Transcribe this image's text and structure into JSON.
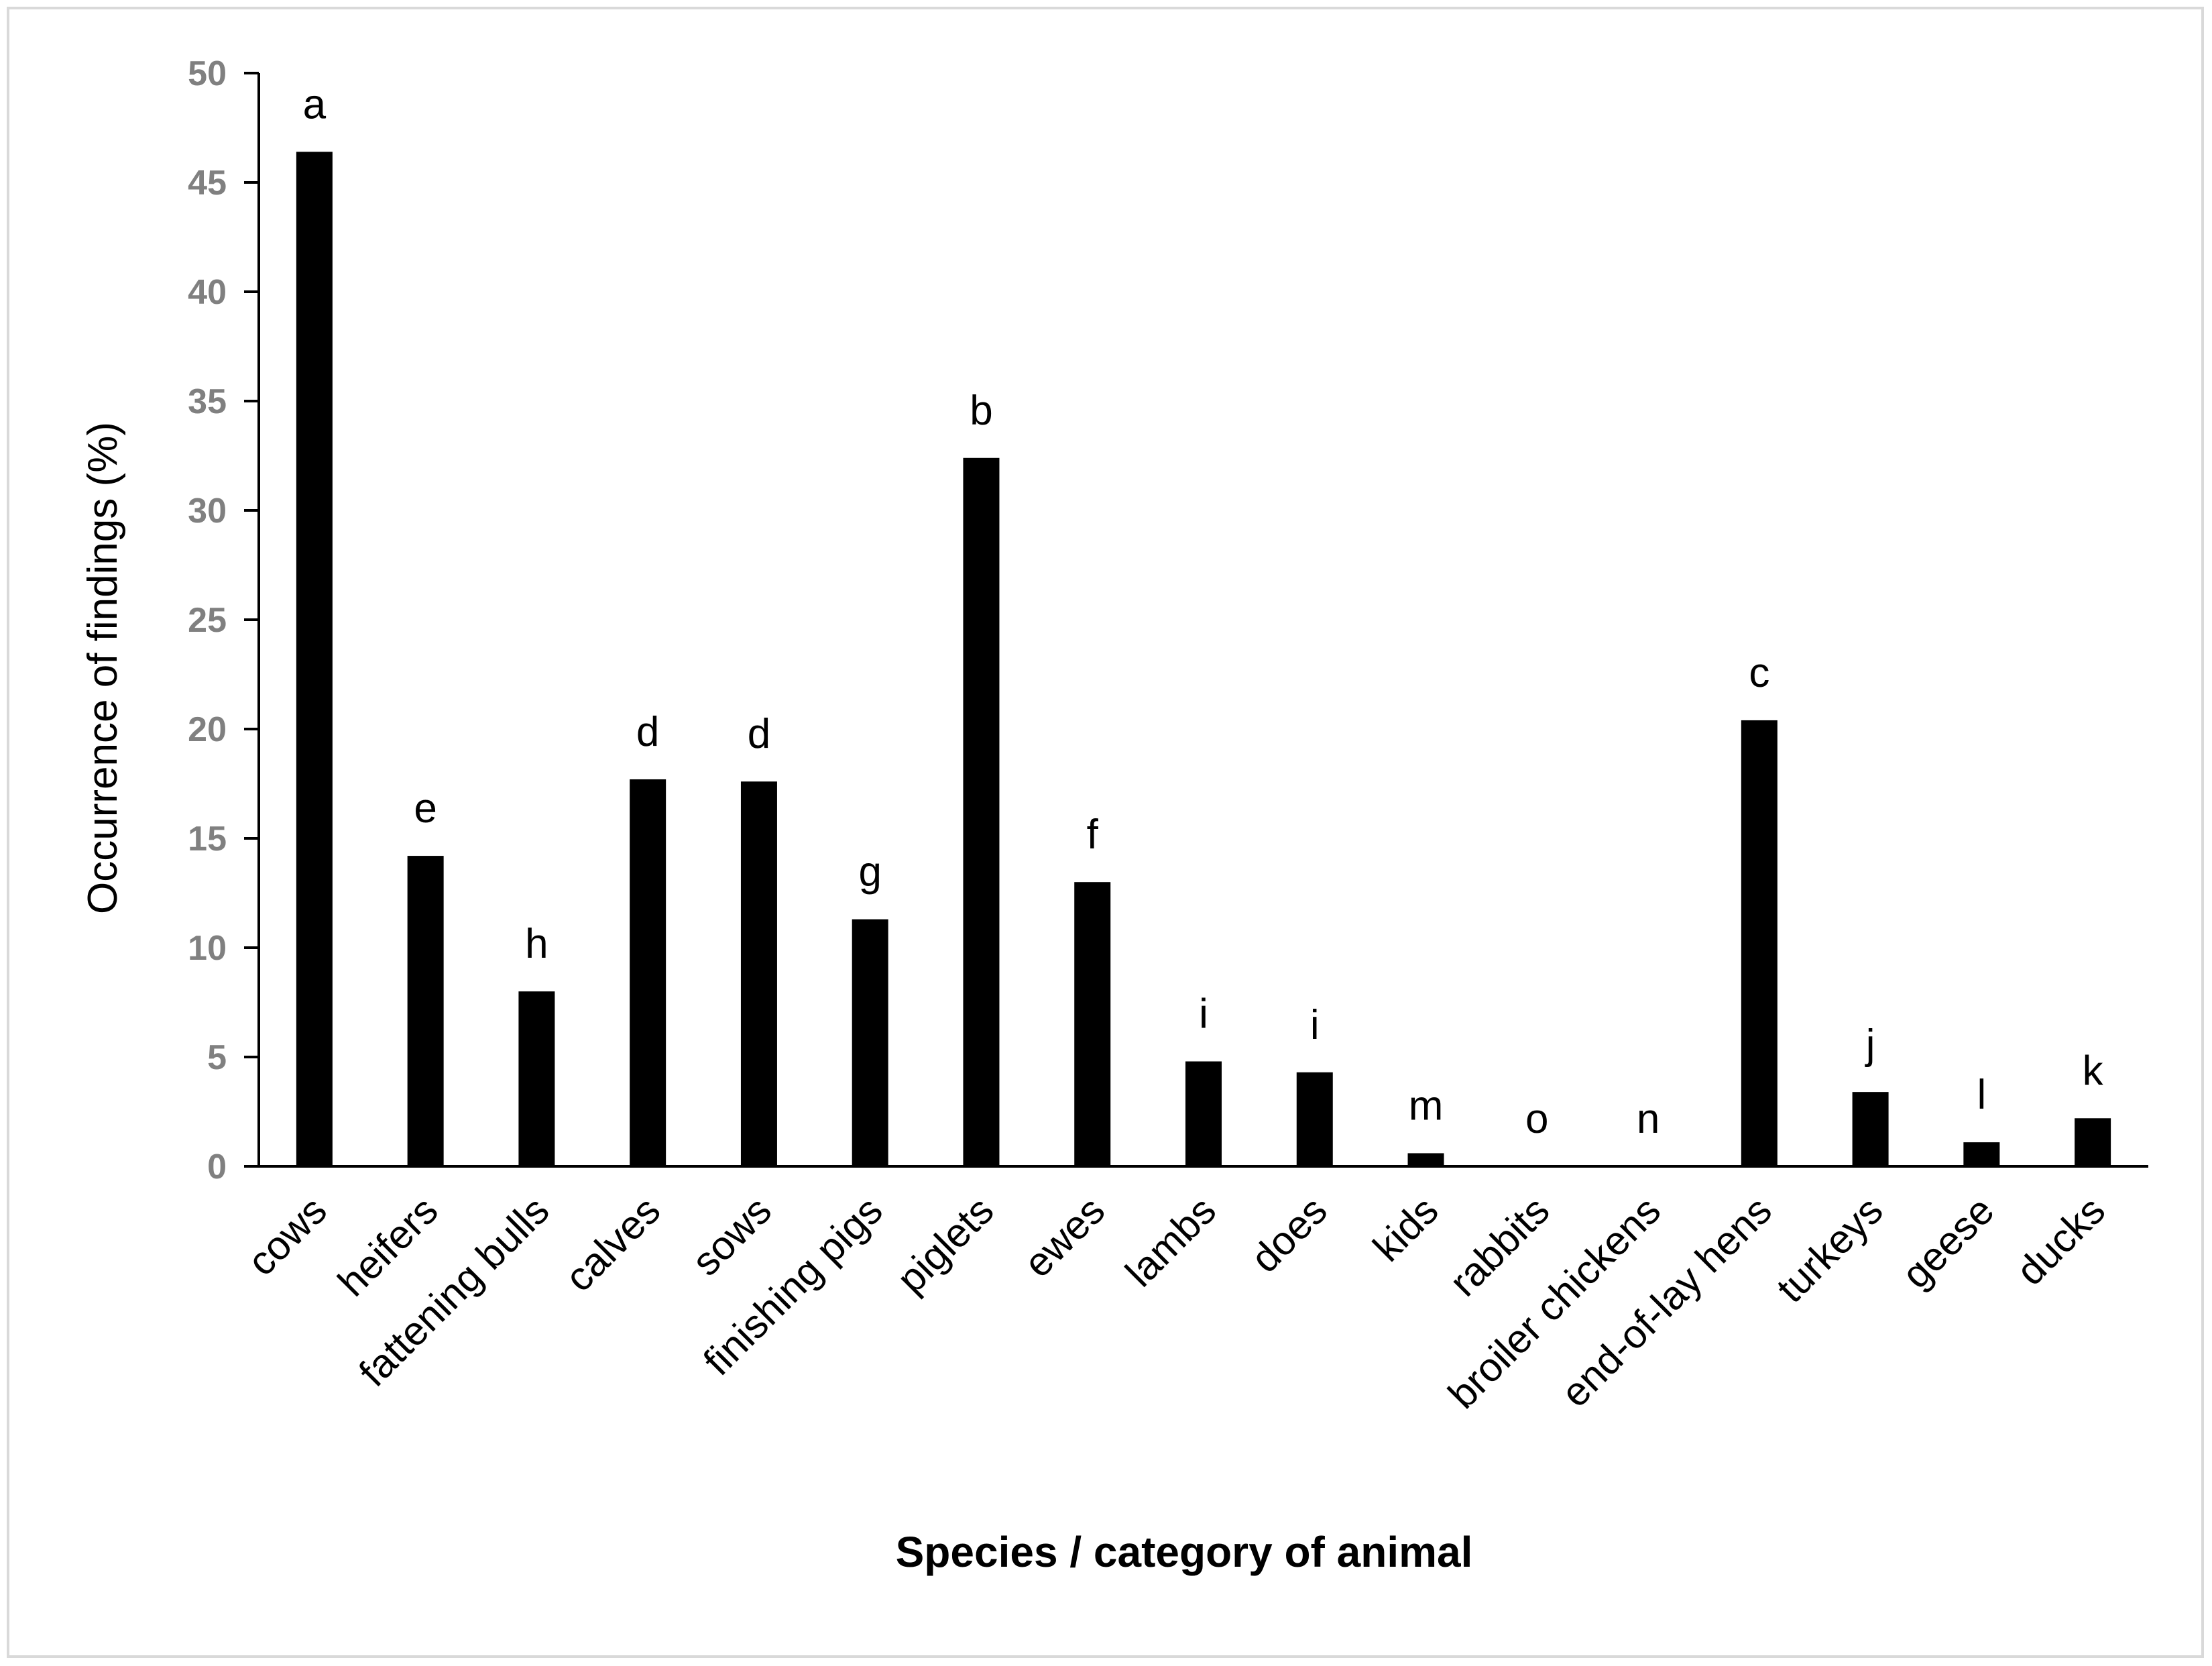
{
  "chart_data": {
    "type": "bar",
    "title": "",
    "xlabel": "Species / category of animal",
    "ylabel": "Occurrence of findings (%)",
    "ylim": [
      0,
      50
    ],
    "yticks": [
      0,
      5,
      10,
      15,
      20,
      25,
      30,
      35,
      40,
      45,
      50
    ],
    "grid": false,
    "legend": "none",
    "categories": [
      "cows",
      "heifers",
      "fattening bulls",
      "calves",
      "sows",
      "finishing pigs",
      "piglets",
      "ewes",
      "lambs",
      "does",
      "kids",
      "rabbits",
      "broiler chickens",
      "end-of-lay hens",
      "turkeys",
      "geese",
      "ducks"
    ],
    "values": [
      46.4,
      14.2,
      8.0,
      17.7,
      17.6,
      11.3,
      32.4,
      13.0,
      4.8,
      4.3,
      0.6,
      0.0,
      0.0,
      20.4,
      3.4,
      1.1,
      2.2
    ],
    "significance_letters": [
      "a",
      "e",
      "h",
      "d",
      "d",
      "g",
      "b",
      "f",
      "i",
      "i",
      "m",
      "o",
      "n",
      "c",
      "j",
      "l",
      "k"
    ],
    "colors": {
      "bar": "#000000",
      "axis": "#000000",
      "tick_label": "#808080",
      "frame": "#d9d9d9"
    }
  }
}
